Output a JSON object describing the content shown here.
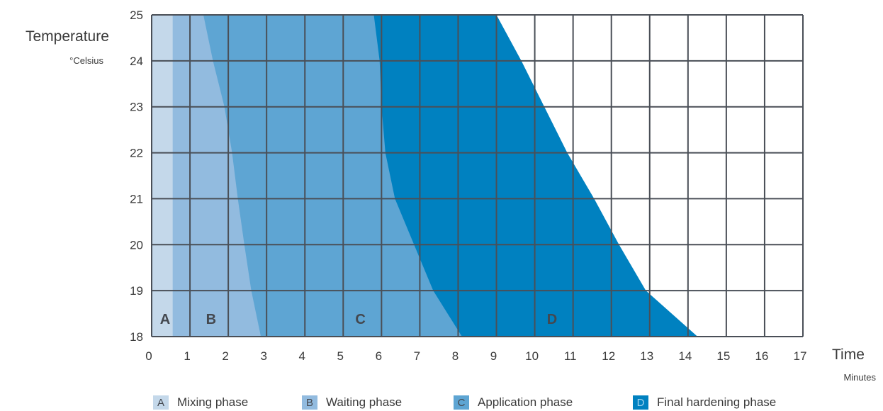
{
  "chart_data": {
    "type": "area",
    "title": "",
    "ylabel": "Temperature",
    "yunit": "°Celsius",
    "xlabel": "Time",
    "xunit": "Minutes",
    "xlim": [
      0,
      17
    ],
    "ylim": [
      18,
      25
    ],
    "xticks": [
      0,
      1,
      2,
      3,
      4,
      5,
      6,
      7,
      8,
      9,
      10,
      11,
      12,
      13,
      14,
      15,
      16,
      17
    ],
    "yticks": [
      18,
      19,
      20,
      21,
      22,
      23,
      24,
      25
    ],
    "grid": true,
    "legend_placement": "bottom",
    "regions": [
      {
        "letter": "A",
        "name": "Mixing phase",
        "color": "#c4d8ea",
        "boundary_end": [
          [
            0.55,
            25
          ],
          [
            0.55,
            18
          ]
        ],
        "label_position": [
          0.35,
          18.4
        ]
      },
      {
        "letter": "B",
        "name": "Waiting phase",
        "color": "#92bbdf",
        "boundary_end": [
          [
            1.35,
            25
          ],
          [
            1.6,
            24
          ],
          [
            1.9,
            23
          ],
          [
            2.1,
            22
          ],
          [
            2.25,
            21
          ],
          [
            2.42,
            20
          ],
          [
            2.6,
            19
          ],
          [
            2.85,
            18
          ]
        ],
        "label_position": [
          1.55,
          18.4
        ]
      },
      {
        "letter": "C",
        "name": "Application phase",
        "color": "#5ea5d3",
        "boundary_end": [
          [
            5.8,
            25
          ],
          [
            5.95,
            24
          ],
          [
            6.0,
            23
          ],
          [
            6.1,
            22
          ],
          [
            6.35,
            21
          ],
          [
            6.85,
            20
          ],
          [
            7.35,
            19
          ],
          [
            8.1,
            18
          ]
        ],
        "label_position": [
          5.45,
          18.4
        ]
      },
      {
        "letter": "D",
        "name": "Final hardening phase",
        "color": "#0081c0",
        "boundary_end": [
          [
            9.0,
            25
          ],
          [
            9.65,
            24
          ],
          [
            10.25,
            23
          ],
          [
            10.85,
            22
          ],
          [
            11.55,
            21
          ],
          [
            12.2,
            20
          ],
          [
            12.9,
            19
          ],
          [
            14.25,
            18
          ]
        ],
        "label_position": [
          10.45,
          18.4
        ]
      }
    ]
  },
  "colors": {
    "grid": "#4a4f57",
    "text": "#3a3a3a",
    "region_label": "#44484f"
  }
}
